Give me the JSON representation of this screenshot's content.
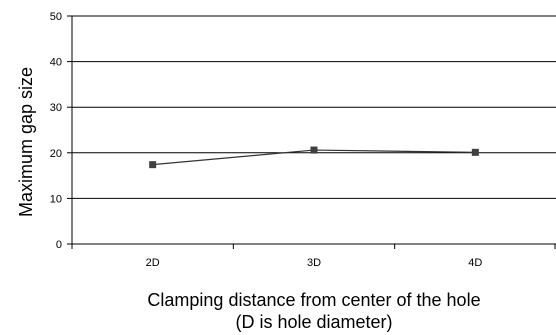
{
  "chart_data": {
    "type": "line",
    "title": "",
    "xlabel": [
      "Clamping distance from center of the hole",
      "(D is hole diameter)"
    ],
    "ylabel": "Maximum gap size",
    "categories": [
      "2D",
      "3D",
      "4D"
    ],
    "series": [
      {
        "values": [
          17.4,
          20.6,
          20.1
        ],
        "color": "#333333",
        "marker": "square"
      }
    ],
    "ylim": [
      0,
      50
    ],
    "yticks": [
      0,
      10,
      20,
      30,
      40,
      50
    ],
    "grid": true,
    "legend": "none"
  }
}
